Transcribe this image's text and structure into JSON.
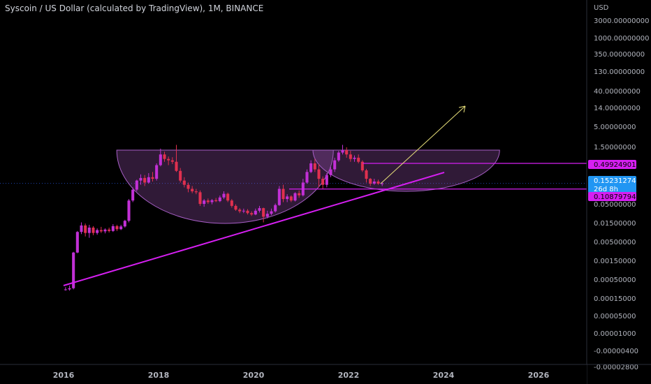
{
  "header": {
    "title": "Syscoin / US Dollar (calculated by TradingView), 1M, BINANCE"
  },
  "colors": {
    "background": "#000000",
    "up_candle": "#c230d6",
    "down_candle": "#e0304f",
    "shape_stroke": "#a85fc7",
    "shape_fill": "rgba(150, 80, 170, 0.32)",
    "trendline": "#d61ff2",
    "level_line": "#d61ff2",
    "arrow": "#e8e07a",
    "current_price_tag": "#2196f3",
    "level_tag": "#d61ff2"
  },
  "chart_data": {
    "type": "candlestick",
    "title": "Syscoin / US Dollar (calculated by TradingView), 1M, BINANCE",
    "currency_label": "USD",
    "y_scale": "log",
    "y_tick_labels": [
      "3000.00000000",
      "1000.00000000",
      "350.00000000",
      "130.00000000",
      "40.00000000",
      "14.00000000",
      "5.00000000",
      "1.50000000",
      "0.50000000",
      "0.15000000",
      "0.05000000",
      "0.01500000",
      "0.00500000",
      "0.00150000",
      "0.00050000",
      "0.00015000",
      "0.00005000",
      "0.00001000",
      "-0.00000400",
      "-0.00002800"
    ],
    "x_tick_labels": [
      "2016",
      "2018",
      "2020",
      "2022",
      "2024",
      "2026"
    ],
    "price_tags": [
      {
        "value": "0.49924901",
        "kind": "level"
      },
      {
        "value": "0.15231274",
        "kind": "current",
        "countdown": "26d 8h"
      },
      {
        "value": "0.10879794",
        "kind": "level"
      }
    ],
    "levels": [
      0.49924901,
      0.10879794
    ],
    "current_price": 0.15231274,
    "annotations": [
      "two cup-and-handle shaded arcs",
      "rising trendline from 2016 low",
      "projected up-arrow toward 2024.5"
    ],
    "candles": [
      {
        "t": "2016-01",
        "o": 0.00028,
        "h": 0.00032,
        "l": 0.00026,
        "c": 0.00028
      },
      {
        "t": "2016-02",
        "o": 0.00028,
        "h": 0.00035,
        "l": 0.00026,
        "c": 0.0003
      },
      {
        "t": "2016-03",
        "o": 0.0003,
        "h": 0.0026,
        "l": 0.00028,
        "c": 0.0025
      },
      {
        "t": "2016-04",
        "o": 0.0025,
        "h": 0.009,
        "l": 0.0024,
        "c": 0.0085
      },
      {
        "t": "2016-05",
        "o": 0.0085,
        "h": 0.015,
        "l": 0.0075,
        "c": 0.0125
      },
      {
        "t": "2016-06",
        "o": 0.0125,
        "h": 0.014,
        "l": 0.0065,
        "c": 0.008
      },
      {
        "t": "2016-07",
        "o": 0.008,
        "h": 0.013,
        "l": 0.006,
        "c": 0.011
      },
      {
        "t": "2016-08",
        "o": 0.011,
        "h": 0.012,
        "l": 0.007,
        "c": 0.008
      },
      {
        "t": "2016-09",
        "o": 0.008,
        "h": 0.0105,
        "l": 0.0072,
        "c": 0.0095
      },
      {
        "t": "2016-10",
        "o": 0.0095,
        "h": 0.0115,
        "l": 0.008,
        "c": 0.0088
      },
      {
        "t": "2016-11",
        "o": 0.0088,
        "h": 0.0105,
        "l": 0.0078,
        "c": 0.0098
      },
      {
        "t": "2016-12",
        "o": 0.0098,
        "h": 0.011,
        "l": 0.0082,
        "c": 0.009
      },
      {
        "t": "2017-01",
        "o": 0.009,
        "h": 0.0135,
        "l": 0.0085,
        "c": 0.012
      },
      {
        "t": "2017-02",
        "o": 0.012,
        "h": 0.013,
        "l": 0.009,
        "c": 0.01
      },
      {
        "t": "2017-03",
        "o": 0.01,
        "h": 0.013,
        "l": 0.0095,
        "c": 0.0118
      },
      {
        "t": "2017-04",
        "o": 0.0118,
        "h": 0.0175,
        "l": 0.011,
        "c": 0.0165
      },
      {
        "t": "2017-05",
        "o": 0.0165,
        "h": 0.06,
        "l": 0.015,
        "c": 0.055
      },
      {
        "t": "2017-06",
        "o": 0.055,
        "h": 0.12,
        "l": 0.05,
        "c": 0.105
      },
      {
        "t": "2017-07",
        "o": 0.105,
        "h": 0.19,
        "l": 0.095,
        "c": 0.18
      },
      {
        "t": "2017-08",
        "o": 0.18,
        "h": 0.26,
        "l": 0.14,
        "c": 0.21
      },
      {
        "t": "2017-09",
        "o": 0.21,
        "h": 0.25,
        "l": 0.13,
        "c": 0.16
      },
      {
        "t": "2017-10",
        "o": 0.16,
        "h": 0.28,
        "l": 0.15,
        "c": 0.22
      },
      {
        "t": "2017-11",
        "o": 0.22,
        "h": 0.3,
        "l": 0.17,
        "c": 0.2
      },
      {
        "t": "2017-12",
        "o": 0.2,
        "h": 0.5,
        "l": 0.18,
        "c": 0.45
      },
      {
        "t": "2018-01",
        "o": 0.45,
        "h": 1.2,
        "l": 0.42,
        "c": 0.85
      },
      {
        "t": "2018-02",
        "o": 0.85,
        "h": 1.0,
        "l": 0.55,
        "c": 0.65
      },
      {
        "t": "2018-03",
        "o": 0.65,
        "h": 0.75,
        "l": 0.45,
        "c": 0.6
      },
      {
        "t": "2018-04",
        "o": 0.6,
        "h": 0.72,
        "l": 0.48,
        "c": 0.55
      },
      {
        "t": "2018-05",
        "o": 0.55,
        "h": 1.5,
        "l": 0.3,
        "c": 0.32
      },
      {
        "t": "2018-06",
        "o": 0.32,
        "h": 0.38,
        "l": 0.16,
        "c": 0.18
      },
      {
        "t": "2018-07",
        "o": 0.18,
        "h": 0.22,
        "l": 0.12,
        "c": 0.14
      },
      {
        "t": "2018-08",
        "o": 0.14,
        "h": 0.16,
        "l": 0.09,
        "c": 0.11
      },
      {
        "t": "2018-09",
        "o": 0.11,
        "h": 0.13,
        "l": 0.085,
        "c": 0.095
      },
      {
        "t": "2018-10",
        "o": 0.095,
        "h": 0.11,
        "l": 0.08,
        "c": 0.09
      },
      {
        "t": "2018-11",
        "o": 0.09,
        "h": 0.1,
        "l": 0.04,
        "c": 0.045
      },
      {
        "t": "2018-12",
        "o": 0.045,
        "h": 0.06,
        "l": 0.038,
        "c": 0.055
      },
      {
        "t": "2019-01",
        "o": 0.055,
        "h": 0.062,
        "l": 0.045,
        "c": 0.05
      },
      {
        "t": "2019-02",
        "o": 0.05,
        "h": 0.06,
        "l": 0.044,
        "c": 0.056
      },
      {
        "t": "2019-03",
        "o": 0.056,
        "h": 0.064,
        "l": 0.05,
        "c": 0.053
      },
      {
        "t": "2019-04",
        "o": 0.053,
        "h": 0.074,
        "l": 0.05,
        "c": 0.066
      },
      {
        "t": "2019-05",
        "o": 0.066,
        "h": 0.095,
        "l": 0.06,
        "c": 0.082
      },
      {
        "t": "2019-06",
        "o": 0.082,
        "h": 0.088,
        "l": 0.05,
        "c": 0.055
      },
      {
        "t": "2019-07",
        "o": 0.055,
        "h": 0.06,
        "l": 0.036,
        "c": 0.04
      },
      {
        "t": "2019-08",
        "o": 0.04,
        "h": 0.044,
        "l": 0.03,
        "c": 0.032
      },
      {
        "t": "2019-09",
        "o": 0.032,
        "h": 0.035,
        "l": 0.026,
        "c": 0.029
      },
      {
        "t": "2019-10",
        "o": 0.029,
        "h": 0.034,
        "l": 0.026,
        "c": 0.03
      },
      {
        "t": "2019-11",
        "o": 0.03,
        "h": 0.033,
        "l": 0.024,
        "c": 0.026
      },
      {
        "t": "2019-12",
        "o": 0.026,
        "h": 0.029,
        "l": 0.022,
        "c": 0.024
      },
      {
        "t": "2020-01",
        "o": 0.024,
        "h": 0.034,
        "l": 0.023,
        "c": 0.03
      },
      {
        "t": "2020-02",
        "o": 0.03,
        "h": 0.04,
        "l": 0.027,
        "c": 0.035
      },
      {
        "t": "2020-03",
        "o": 0.035,
        "h": 0.036,
        "l": 0.015,
        "c": 0.021
      },
      {
        "t": "2020-04",
        "o": 0.021,
        "h": 0.03,
        "l": 0.019,
        "c": 0.025
      },
      {
        "t": "2020-05",
        "o": 0.025,
        "h": 0.034,
        "l": 0.023,
        "c": 0.029
      },
      {
        "t": "2020-06",
        "o": 0.029,
        "h": 0.046,
        "l": 0.027,
        "c": 0.042
      },
      {
        "t": "2020-07",
        "o": 0.042,
        "h": 0.13,
        "l": 0.04,
        "c": 0.11
      },
      {
        "t": "2020-08",
        "o": 0.11,
        "h": 0.14,
        "l": 0.05,
        "c": 0.06
      },
      {
        "t": "2020-09",
        "o": 0.06,
        "h": 0.08,
        "l": 0.05,
        "c": 0.07
      },
      {
        "t": "2020-10",
        "o": 0.07,
        "h": 0.075,
        "l": 0.05,
        "c": 0.055
      },
      {
        "t": "2020-11",
        "o": 0.055,
        "h": 0.09,
        "l": 0.052,
        "c": 0.085
      },
      {
        "t": "2020-12",
        "o": 0.085,
        "h": 0.1,
        "l": 0.065,
        "c": 0.075
      },
      {
        "t": "2021-01",
        "o": 0.075,
        "h": 0.2,
        "l": 0.07,
        "c": 0.16
      },
      {
        "t": "2021-02",
        "o": 0.16,
        "h": 0.35,
        "l": 0.15,
        "c": 0.3
      },
      {
        "t": "2021-03",
        "o": 0.3,
        "h": 0.6,
        "l": 0.28,
        "c": 0.5
      },
      {
        "t": "2021-04",
        "o": 0.5,
        "h": 0.65,
        "l": 0.3,
        "c": 0.35
      },
      {
        "t": "2021-05",
        "o": 0.35,
        "h": 0.48,
        "l": 0.12,
        "c": 0.2
      },
      {
        "t": "2021-06",
        "o": 0.2,
        "h": 0.23,
        "l": 0.11,
        "c": 0.14
      },
      {
        "t": "2021-07",
        "o": 0.14,
        "h": 0.28,
        "l": 0.12,
        "c": 0.25
      },
      {
        "t": "2021-08",
        "o": 0.25,
        "h": 0.4,
        "l": 0.22,
        "c": 0.35
      },
      {
        "t": "2021-09",
        "o": 0.35,
        "h": 0.7,
        "l": 0.3,
        "c": 0.6
      },
      {
        "t": "2021-10",
        "o": 0.6,
        "h": 1.05,
        "l": 0.55,
        "c": 0.95
      },
      {
        "t": "2021-11",
        "o": 0.95,
        "h": 1.5,
        "l": 0.85,
        "c": 1.1
      },
      {
        "t": "2021-12",
        "o": 1.1,
        "h": 1.3,
        "l": 0.7,
        "c": 0.85
      },
      {
        "t": "2022-01",
        "o": 0.85,
        "h": 1.05,
        "l": 0.55,
        "c": 0.65
      },
      {
        "t": "2022-02",
        "o": 0.65,
        "h": 0.8,
        "l": 0.55,
        "c": 0.7
      },
      {
        "t": "2022-03",
        "o": 0.7,
        "h": 0.85,
        "l": 0.5,
        "c": 0.55
      },
      {
        "t": "2022-04",
        "o": 0.55,
        "h": 0.6,
        "l": 0.3,
        "c": 0.33
      },
      {
        "t": "2022-05",
        "o": 0.33,
        "h": 0.36,
        "l": 0.16,
        "c": 0.2
      },
      {
        "t": "2022-06",
        "o": 0.2,
        "h": 0.21,
        "l": 0.13,
        "c": 0.15
      },
      {
        "t": "2022-07",
        "o": 0.15,
        "h": 0.2,
        "l": 0.14,
        "c": 0.17
      },
      {
        "t": "2022-08",
        "o": 0.17,
        "h": 0.19,
        "l": 0.14,
        "c": 0.15
      },
      {
        "t": "2022-09",
        "o": 0.15,
        "h": 0.165,
        "l": 0.13,
        "c": 0.15231274
      }
    ]
  }
}
